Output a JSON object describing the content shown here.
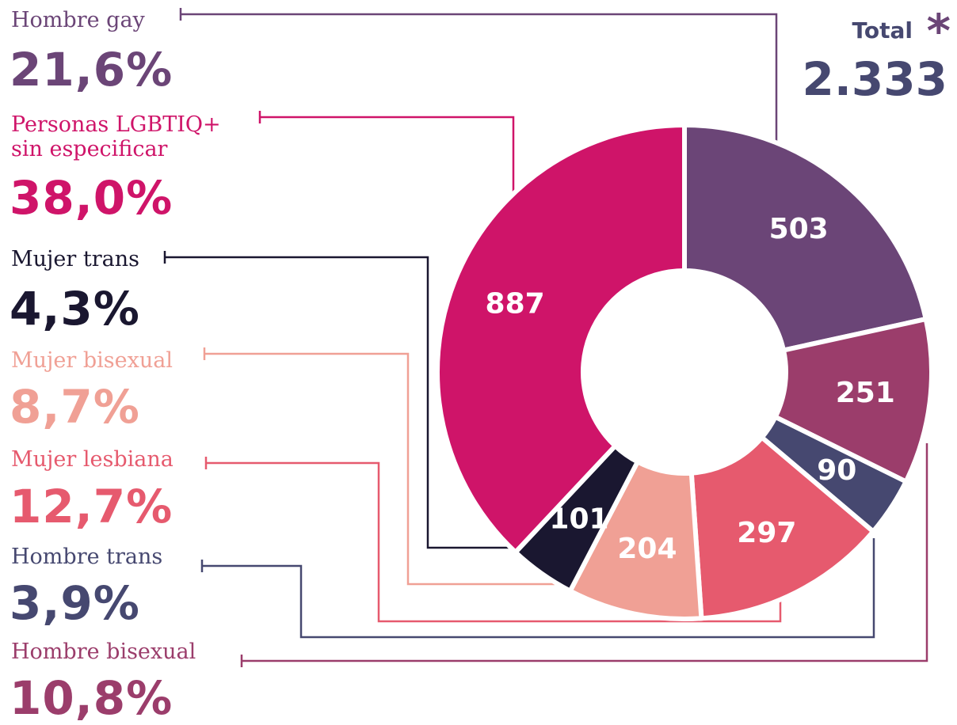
{
  "chart_data": {
    "type": "pie",
    "donut": true,
    "categories": [
      "Hombre gay",
      "Personas LGBTIQ+ sin especificar",
      "Mujer trans",
      "Mujer bisexual",
      "Mujer lesbiana",
      "Hombre trans",
      "Hombre bisexual"
    ],
    "values": [
      503,
      887,
      101,
      204,
      297,
      90,
      251
    ],
    "percent_labels": [
      "21,6%",
      "38,0%",
      "4,3%",
      "8,7%",
      "12,7%",
      "3,9%",
      "10,8%"
    ],
    "colors": [
      "#6b4577",
      "#cf1469",
      "#1a1730",
      "#f0a095",
      "#e65a6e",
      "#464870",
      "#9b3d6b"
    ],
    "total_label": "Total",
    "asterisk": "*",
    "total": {
      "value": 2333,
      "label": "2.333"
    }
  }
}
